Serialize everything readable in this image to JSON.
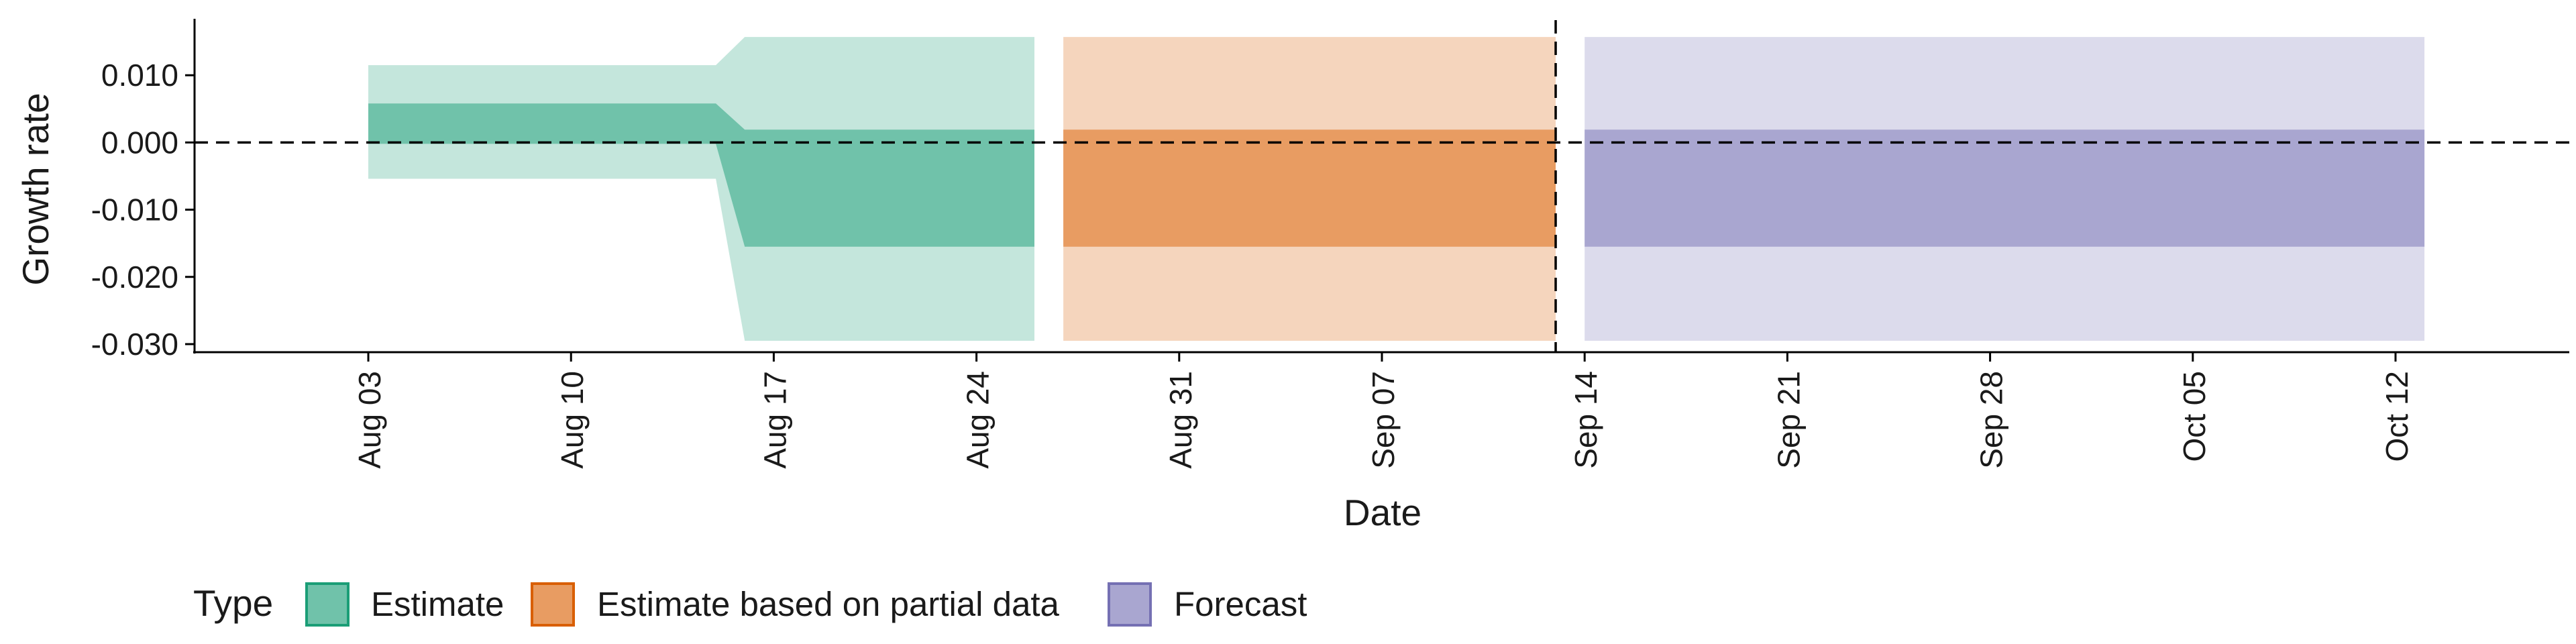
{
  "chart_data": {
    "type": "area",
    "xlabel": "Date",
    "ylabel": "Growth rate",
    "x_ticks": [
      "2020-08-03",
      "2020-08-10",
      "2020-08-17",
      "2020-08-24",
      "2020-08-31",
      "2020-09-07",
      "2020-09-14",
      "2020-09-21",
      "2020-09-28",
      "2020-10-05",
      "2020-10-12"
    ],
    "x_tick_labels": [
      "Aug 03",
      "Aug 10",
      "Aug 17",
      "Aug 24",
      "Aug 31",
      "Sep 07",
      "Sep 14",
      "Sep 21",
      "Sep 28",
      "Oct 05",
      "Oct 12"
    ],
    "xlim": [
      "2020-07-28",
      "2020-10-18"
    ],
    "y_ticks": [
      -0.03,
      -0.02,
      -0.01,
      0.0,
      0.01
    ],
    "y_tick_labels": [
      "-0.030",
      "-0.020",
      "-0.010",
      "0.000",
      "0.010"
    ],
    "ylim": [
      -0.0312,
      0.0182
    ],
    "hlines": [
      0
    ],
    "vlines": [
      "2020-09-13"
    ],
    "grid": false,
    "legend": {
      "title": "Type",
      "position": "bottom",
      "entries": [
        {
          "label": "Estimate",
          "fill": "#70c2aa",
          "stroke": "#1b9e77"
        },
        {
          "label": "Estimate based on partial data",
          "fill": "#e89c62",
          "stroke": "#d95f02"
        },
        {
          "label": "Forecast",
          "fill": "#a9a6d0",
          "stroke": "#7570b3"
        }
      ]
    },
    "series": [
      {
        "name": "Estimate",
        "color": "#1b9e77",
        "inner_color": "#70c2aa",
        "outer_color": "#c4e6dc",
        "x": [
          "2020-08-03",
          "2020-08-15",
          "2020-08-16",
          "2020-08-17",
          "2020-08-26"
        ],
        "inner_lower": [
          -0.0002,
          -0.0002,
          -0.0155,
          -0.0155,
          -0.0155
        ],
        "inner_upper": [
          0.0058,
          0.0058,
          0.0019,
          0.0019,
          0.0019
        ],
        "outer_lower": [
          -0.0054,
          -0.0054,
          -0.0295,
          -0.0295,
          -0.0295
        ],
        "outer_upper": [
          0.0115,
          0.0115,
          0.0157,
          0.0157,
          0.0157
        ]
      },
      {
        "name": "Estimate based on partial data",
        "color": "#d95f02",
        "inner_color": "#e89c62",
        "outer_color": "#f5d5bd",
        "x": [
          "2020-08-27",
          "2020-09-13"
        ],
        "inner_lower": [
          -0.0155,
          -0.0155
        ],
        "inner_upper": [
          0.0019,
          0.0019
        ],
        "outer_lower": [
          -0.0295,
          -0.0295
        ],
        "outer_upper": [
          0.0157,
          0.0157
        ]
      },
      {
        "name": "Forecast",
        "color": "#7570b3",
        "inner_color": "#a9a6d0",
        "outer_color": "#dcdbec",
        "x": [
          "2020-09-14",
          "2020-10-13"
        ],
        "inner_lower": [
          -0.0155,
          -0.0155
        ],
        "inner_upper": [
          0.0019,
          0.0019
        ],
        "outer_lower": [
          -0.0295,
          -0.0295
        ],
        "outer_upper": [
          0.0157,
          0.0157
        ]
      }
    ]
  }
}
